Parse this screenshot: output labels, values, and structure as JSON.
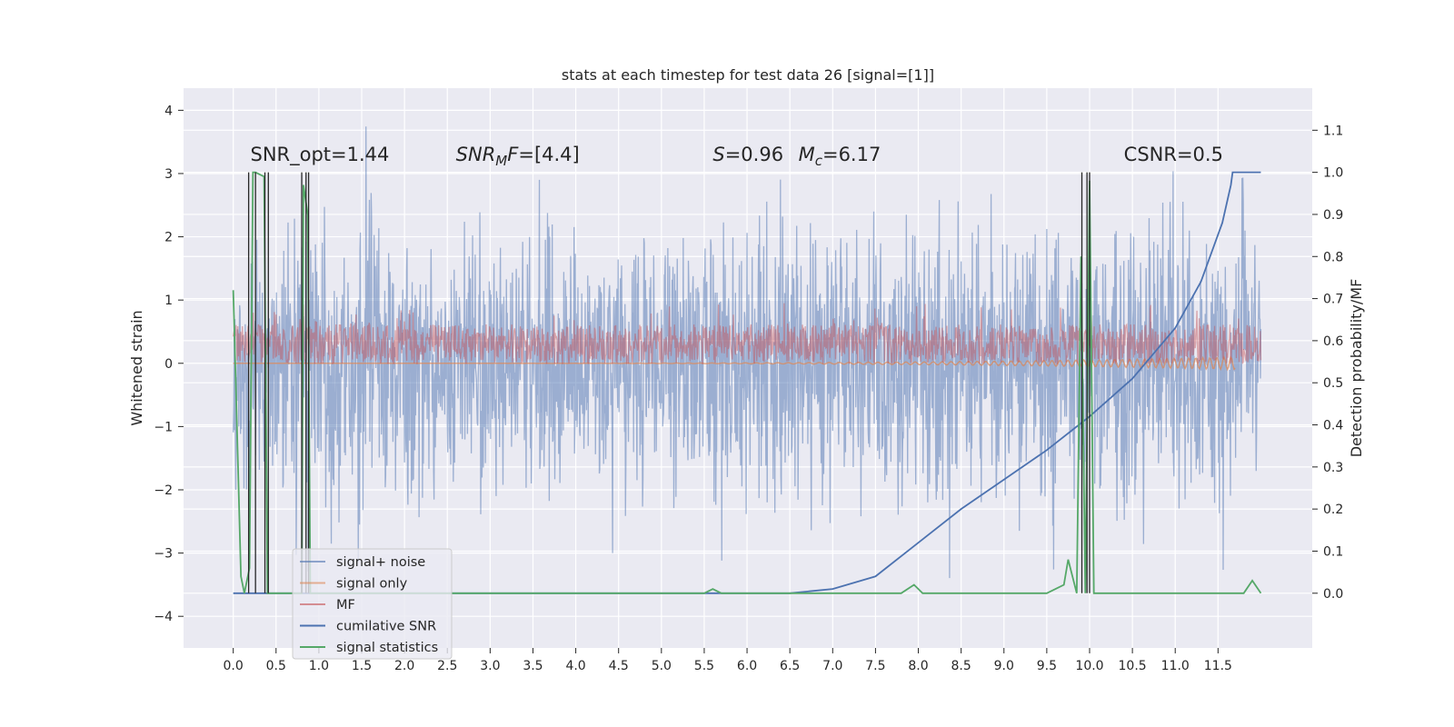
{
  "chart_data": {
    "type": "line",
    "title": "stats at each timestep for test data 26 [signal=[1]]",
    "ylabel_left": "Whitened strain",
    "ylabel_right": "Detection probability/MF",
    "xlabel": "",
    "xlim": [
      -0.58,
      12.6
    ],
    "ylim_left": [
      -4.5,
      4.35
    ],
    "ylim_right": [
      -0.13,
      1.2
    ],
    "x_ticks": [
      0.0,
      0.5,
      1.0,
      1.5,
      2.0,
      2.5,
      3.0,
      3.5,
      4.0,
      4.5,
      5.0,
      5.5,
      6.0,
      6.5,
      7.0,
      7.5,
      8.0,
      8.5,
      9.0,
      9.5,
      10.0,
      10.5,
      11.0,
      11.5
    ],
    "x_tick_labels": [
      "0.0",
      "0.5",
      "1.0",
      "1.5",
      "2.0",
      "2.5",
      "3.0",
      "3.5",
      "4.0",
      "4.5",
      "5.0",
      "5.5",
      "6.0",
      "6.5",
      "7.0",
      "7.5",
      "8.0",
      "8.5",
      "9.0",
      "9.5",
      "10.0",
      "10.5",
      "11.0",
      "11.5"
    ],
    "y_left_ticks": [
      -4,
      -3,
      -2,
      -1,
      0,
      1,
      2,
      3,
      4
    ],
    "y_left_tick_labels": [
      "−4",
      "−3",
      "−2",
      "−1",
      "0",
      "1",
      "2",
      "3",
      "4"
    ],
    "y_right_ticks": [
      0.0,
      0.1,
      0.2,
      0.3,
      0.4,
      0.5,
      0.6,
      0.7,
      0.8,
      0.9,
      1.0,
      1.1
    ],
    "y_right_tick_labels": [
      "0.0",
      "0.1",
      "0.2",
      "0.3",
      "0.4",
      "0.5",
      "0.6",
      "0.7",
      "0.8",
      "0.9",
      "1.0",
      "1.1"
    ],
    "grid": true,
    "legend_position": "lower-left",
    "annotations": [
      {
        "id": "snr-opt",
        "text": "SNR_opt=1.44",
        "x": 0.2,
        "y": 3.2
      },
      {
        "id": "snr-mf",
        "text": "SNRMF=[4.4]",
        "x": 2.6,
        "y": 3.2
      },
      {
        "id": "s-stat",
        "text": "S=0.96",
        "x": 5.6,
        "y": 3.2
      },
      {
        "id": "mc",
        "text": "Mc=6.17",
        "x": 6.6,
        "y": 3.2
      },
      {
        "id": "csnr",
        "text": "CSNR=0.5",
        "x": 10.4,
        "y": 3.2
      }
    ],
    "series": [
      {
        "name": "signal+ noise",
        "axis": "left",
        "color": "#4c72b0",
        "opacity": 0.5,
        "style": "noise",
        "amplitude_std": 1.0,
        "x_range": [
          0.0,
          12.0
        ]
      },
      {
        "name": "signal only",
        "axis": "left",
        "color": "#dd8452",
        "opacity": 0.5,
        "style": "chirp",
        "amplitude_max": 0.1,
        "x_range": [
          0.0,
          11.7
        ]
      },
      {
        "name": "MF",
        "axis": "left",
        "color": "#c44e52",
        "opacity": 0.45,
        "style": "band",
        "band": [
          0.0,
          0.6
        ],
        "x_range": [
          0.0,
          12.0
        ]
      },
      {
        "name": "cumilative SNR",
        "axis": "right",
        "color": "#4c72b0",
        "x": [
          0.0,
          6.5,
          7.0,
          7.5,
          8.0,
          8.5,
          9.0,
          9.5,
          10.0,
          10.5,
          11.0,
          11.3,
          11.55,
          11.65,
          11.67,
          12.0
        ],
        "y": [
          0.0,
          0.0,
          0.01,
          0.04,
          0.12,
          0.2,
          0.27,
          0.34,
          0.42,
          0.51,
          0.63,
          0.74,
          0.88,
          0.97,
          1.0,
          1.0
        ]
      },
      {
        "name": "signal statistics",
        "axis": "right",
        "color": "#55a868",
        "x": [
          0.0,
          0.03,
          0.09,
          0.13,
          0.19,
          0.23,
          0.26,
          0.36,
          0.4,
          0.42,
          0.8,
          0.82,
          0.87,
          0.9,
          0.93,
          5.5,
          5.6,
          5.7,
          7.5,
          7.8,
          7.95,
          8.0,
          8.05,
          9.5,
          9.7,
          9.75,
          9.85,
          9.9,
          9.95,
          10.0,
          10.05,
          10.1,
          10.3,
          11.5,
          11.8,
          11.9,
          12.0
        ],
        "y": [
          0.72,
          0.5,
          0.04,
          0.0,
          0.06,
          1.0,
          1.0,
          0.99,
          0.0,
          0.0,
          0.0,
          0.97,
          0.9,
          0.0,
          0.0,
          0.0,
          0.01,
          0.0,
          0.0,
          0.0,
          0.02,
          0.01,
          0.0,
          0.0,
          0.02,
          0.08,
          0.0,
          0.8,
          0.0,
          0.98,
          0.0,
          0.0,
          0.0,
          0.0,
          0.0,
          0.03,
          0.0
        ]
      }
    ],
    "vertical_lines": [
      0.18,
      0.26,
      0.37,
      0.41,
      0.8,
      0.85,
      0.88,
      9.91,
      9.97,
      10.0
    ],
    "vertical_lines_color": "#262626"
  }
}
